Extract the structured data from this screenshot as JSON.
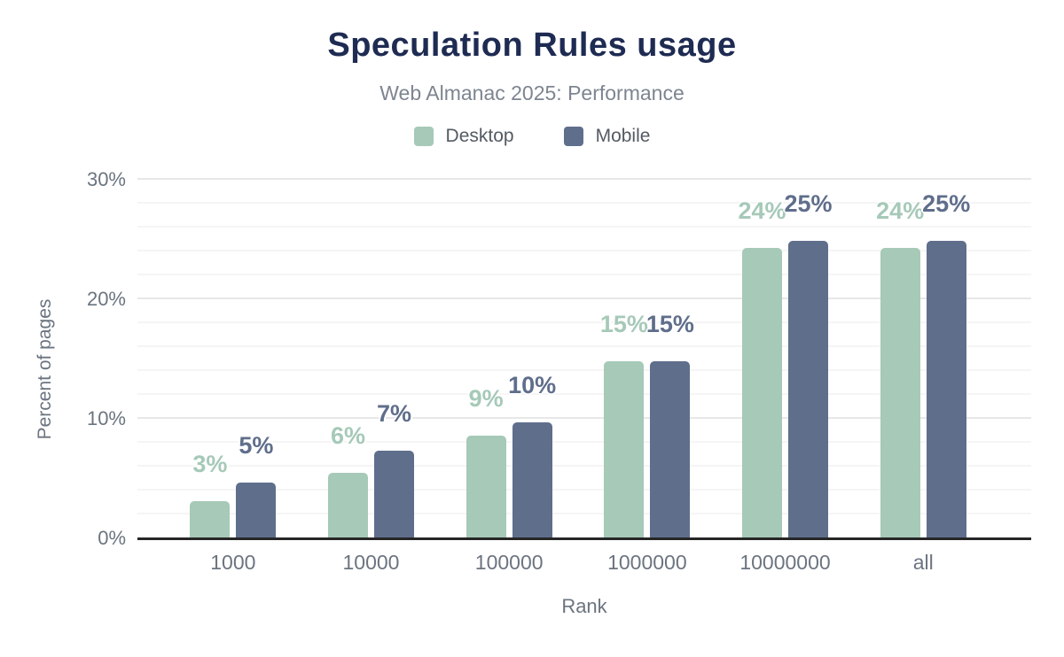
{
  "header": {
    "title": "Speculation Rules usage",
    "subtitle": "Web Almanac 2025: Performance"
  },
  "legend": {
    "items": [
      {
        "label": "Desktop",
        "color": "#a6c9b8"
      },
      {
        "label": "Mobile",
        "color": "#5f6e8b"
      }
    ]
  },
  "chart_data": {
    "type": "bar",
    "title": "Speculation Rules usage",
    "subtitle": "Web Almanac 2025: Performance",
    "categories": [
      "1000",
      "10000",
      "100000",
      "1000000",
      "10000000",
      "all"
    ],
    "series": [
      {
        "name": "Desktop",
        "color": "#a6c9b8",
        "values": [
          3.1,
          5.5,
          8.6,
          14.8,
          24.3,
          24.3
        ],
        "labels": [
          "3%",
          "6%",
          "9%",
          "15%",
          "24%",
          "24%"
        ]
      },
      {
        "name": "Mobile",
        "color": "#5f6e8b",
        "values": [
          4.7,
          7.3,
          9.7,
          14.8,
          24.9,
          24.9
        ],
        "labels": [
          "5%",
          "7%",
          "10%",
          "15%",
          "25%",
          "25%"
        ]
      }
    ],
    "xlabel": "Rank",
    "ylabel": "Percent of pages",
    "ylim": [
      0,
      30
    ],
    "yticks": [
      0,
      10,
      20,
      30
    ],
    "ytick_labels": [
      "0%",
      "10%",
      "20%",
      "30%"
    ],
    "minor_grid_step": 2,
    "major_grid_step": 10,
    "grid": true,
    "legend_position": "top"
  },
  "theme": {
    "title_color": "#1e2b52",
    "subtitle_color": "#7d8590",
    "axis_text_color": "#6b7480",
    "legend_text_color": "#545a62",
    "axis_line_color": "#262626",
    "grid_major_color": "#e7e7e7",
    "grid_minor_color": "#f6f5f5",
    "background": "#ffffff"
  }
}
